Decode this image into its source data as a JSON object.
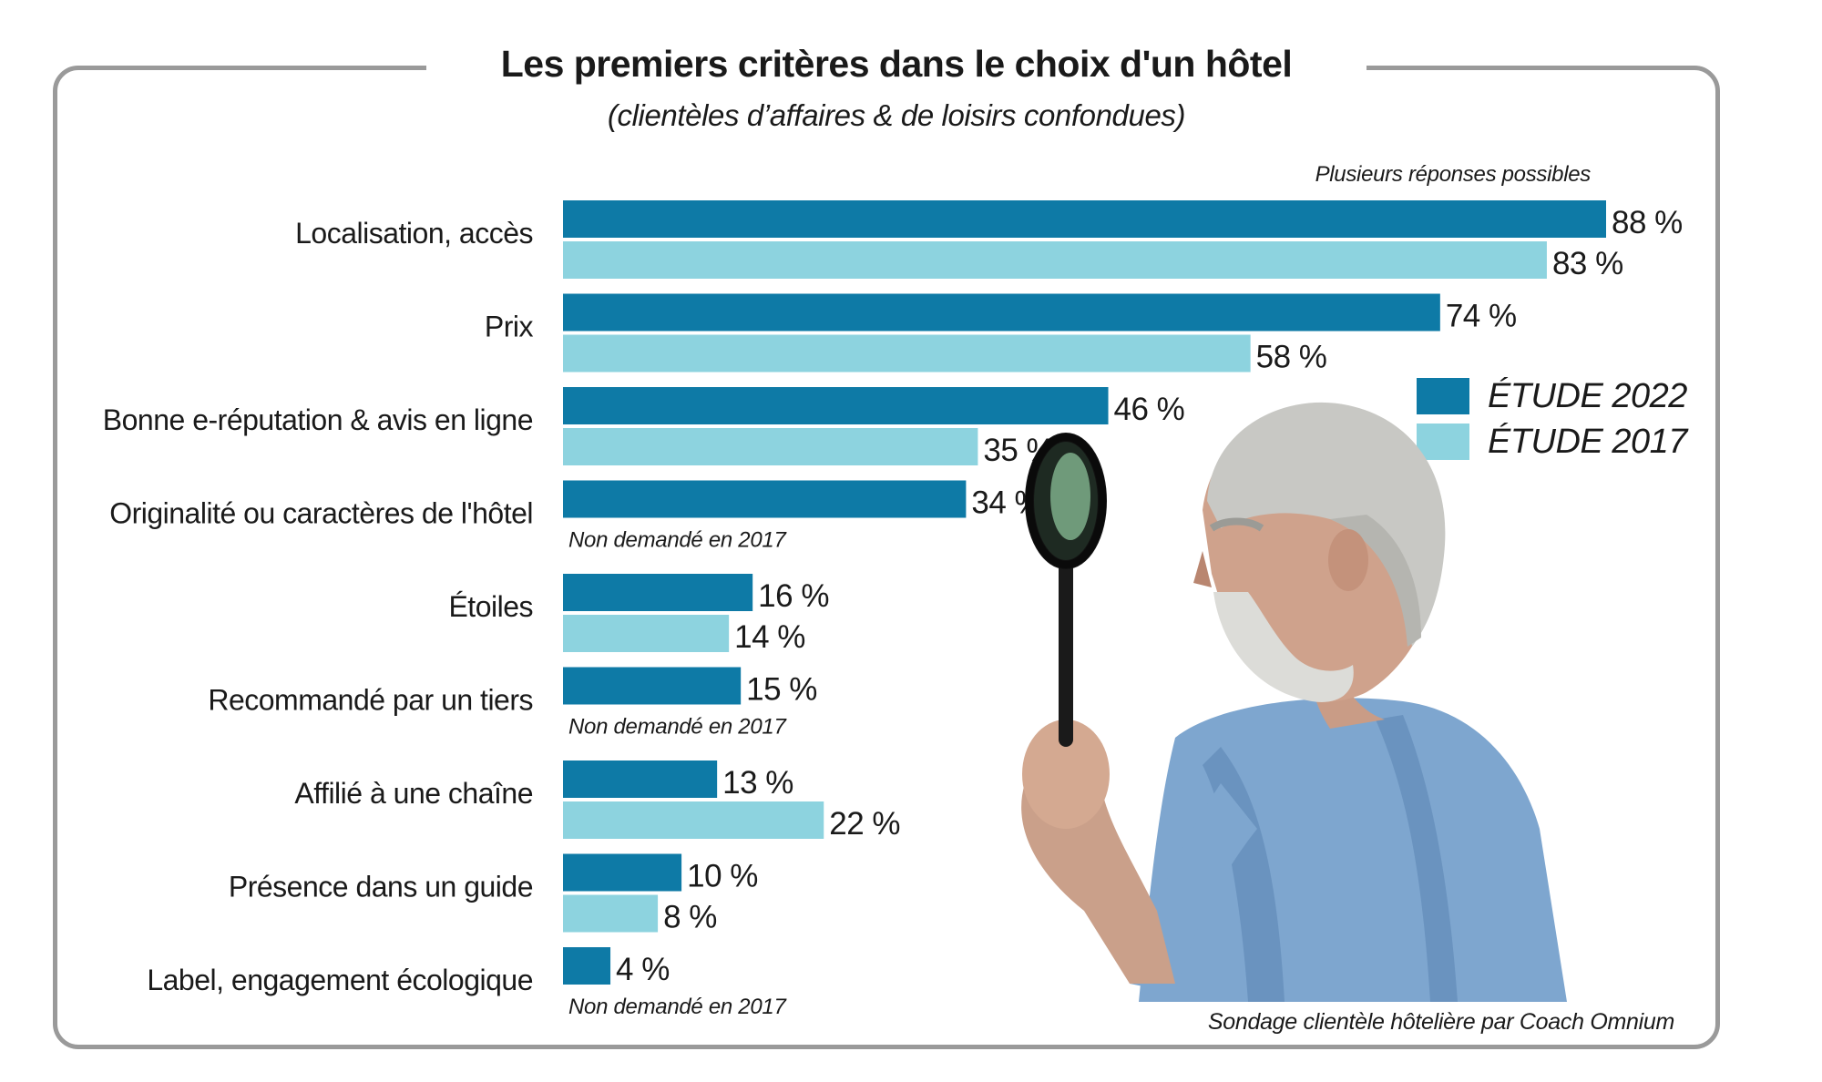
{
  "chart_data": {
    "type": "bar",
    "orientation": "horizontal",
    "title": "Les premiers critères dans le choix d'un hôtel",
    "subtitle": "(clientèles d’affaires & de loisirs confondues)",
    "note": "Plusieurs réponses possibles",
    "source": "Sondage clientèle hôtelière par Coach Omnium",
    "categories": [
      "Localisation, accès",
      "Prix",
      "Bonne e-réputation & avis en ligne",
      "Originalité ou caractères de l'hôtel",
      "Étoiles",
      "Recommandé par un tiers",
      "Affilié à une chaîne",
      "Présence dans un guide",
      "Label, engagement écologique"
    ],
    "series": [
      {
        "name": "ÉTUDE 2022",
        "color": "#0e7aa6",
        "values": [
          88,
          74,
          46,
          34,
          16,
          15,
          13,
          10,
          4
        ],
        "labels": [
          "88 %",
          "74 %",
          "46 %",
          "34 %",
          "16 %",
          "15 %",
          "13 %",
          "10 %",
          "4 %"
        ]
      },
      {
        "name": "ÉTUDE 2017",
        "color": "#8dd3df",
        "values": [
          83,
          58,
          35,
          null,
          14,
          null,
          22,
          8,
          null
        ],
        "labels": [
          "83 %",
          "58 %",
          "35 %",
          "Non demandé en 2017",
          "14 %",
          "Non demandé en 2017",
          "22 %",
          "8 %",
          "Non demandé en 2017"
        ]
      }
    ],
    "xlim": [
      0,
      88
    ],
    "unit": "%",
    "legend_position": "right",
    "grid": false
  },
  "legend": [
    {
      "label": "ÉTUDE 2022",
      "color": "#0e7aa6"
    },
    {
      "label": "ÉTUDE 2017",
      "color": "#8dd3df"
    }
  ]
}
